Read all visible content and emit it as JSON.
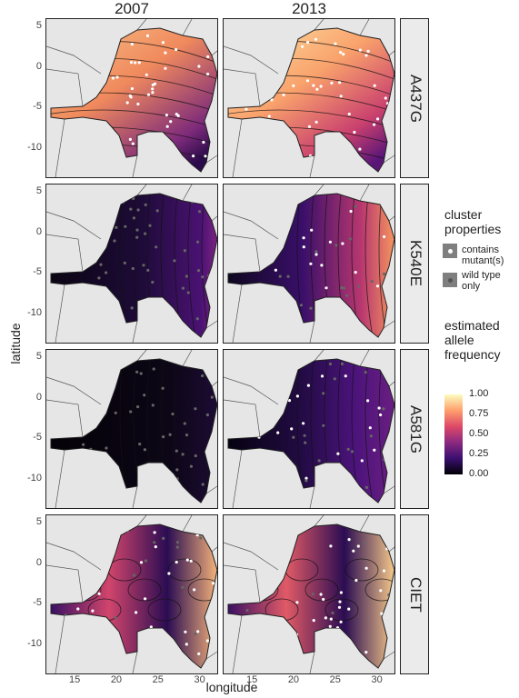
{
  "columns": [
    "2007",
    "2013"
  ],
  "rows": [
    "A437G",
    "K540E",
    "A581G",
    "CIET"
  ],
  "axes": {
    "xlabel": "longitude",
    "ylabel": "latitude",
    "x_ticks": [
      "15",
      "20",
      "25",
      "30"
    ],
    "y_ticks": [
      "5",
      "0",
      "-5",
      "-10"
    ],
    "x_range": [
      11.5,
      32
    ],
    "y_range": [
      -13.5,
      6
    ]
  },
  "legend": {
    "cluster_title": "cluster properties",
    "cluster_items": [
      "contains mutant(s)",
      "wild type only"
    ],
    "freq_title": "estimated allele frequency",
    "freq_ticks": [
      "1.00",
      "0.75",
      "0.50",
      "0.25",
      "0.00"
    ],
    "colors": [
      "#000004",
      "#3b0f70",
      "#8c2981",
      "#de4968",
      "#fe9f6d",
      "#fcfdbf"
    ]
  }
}
